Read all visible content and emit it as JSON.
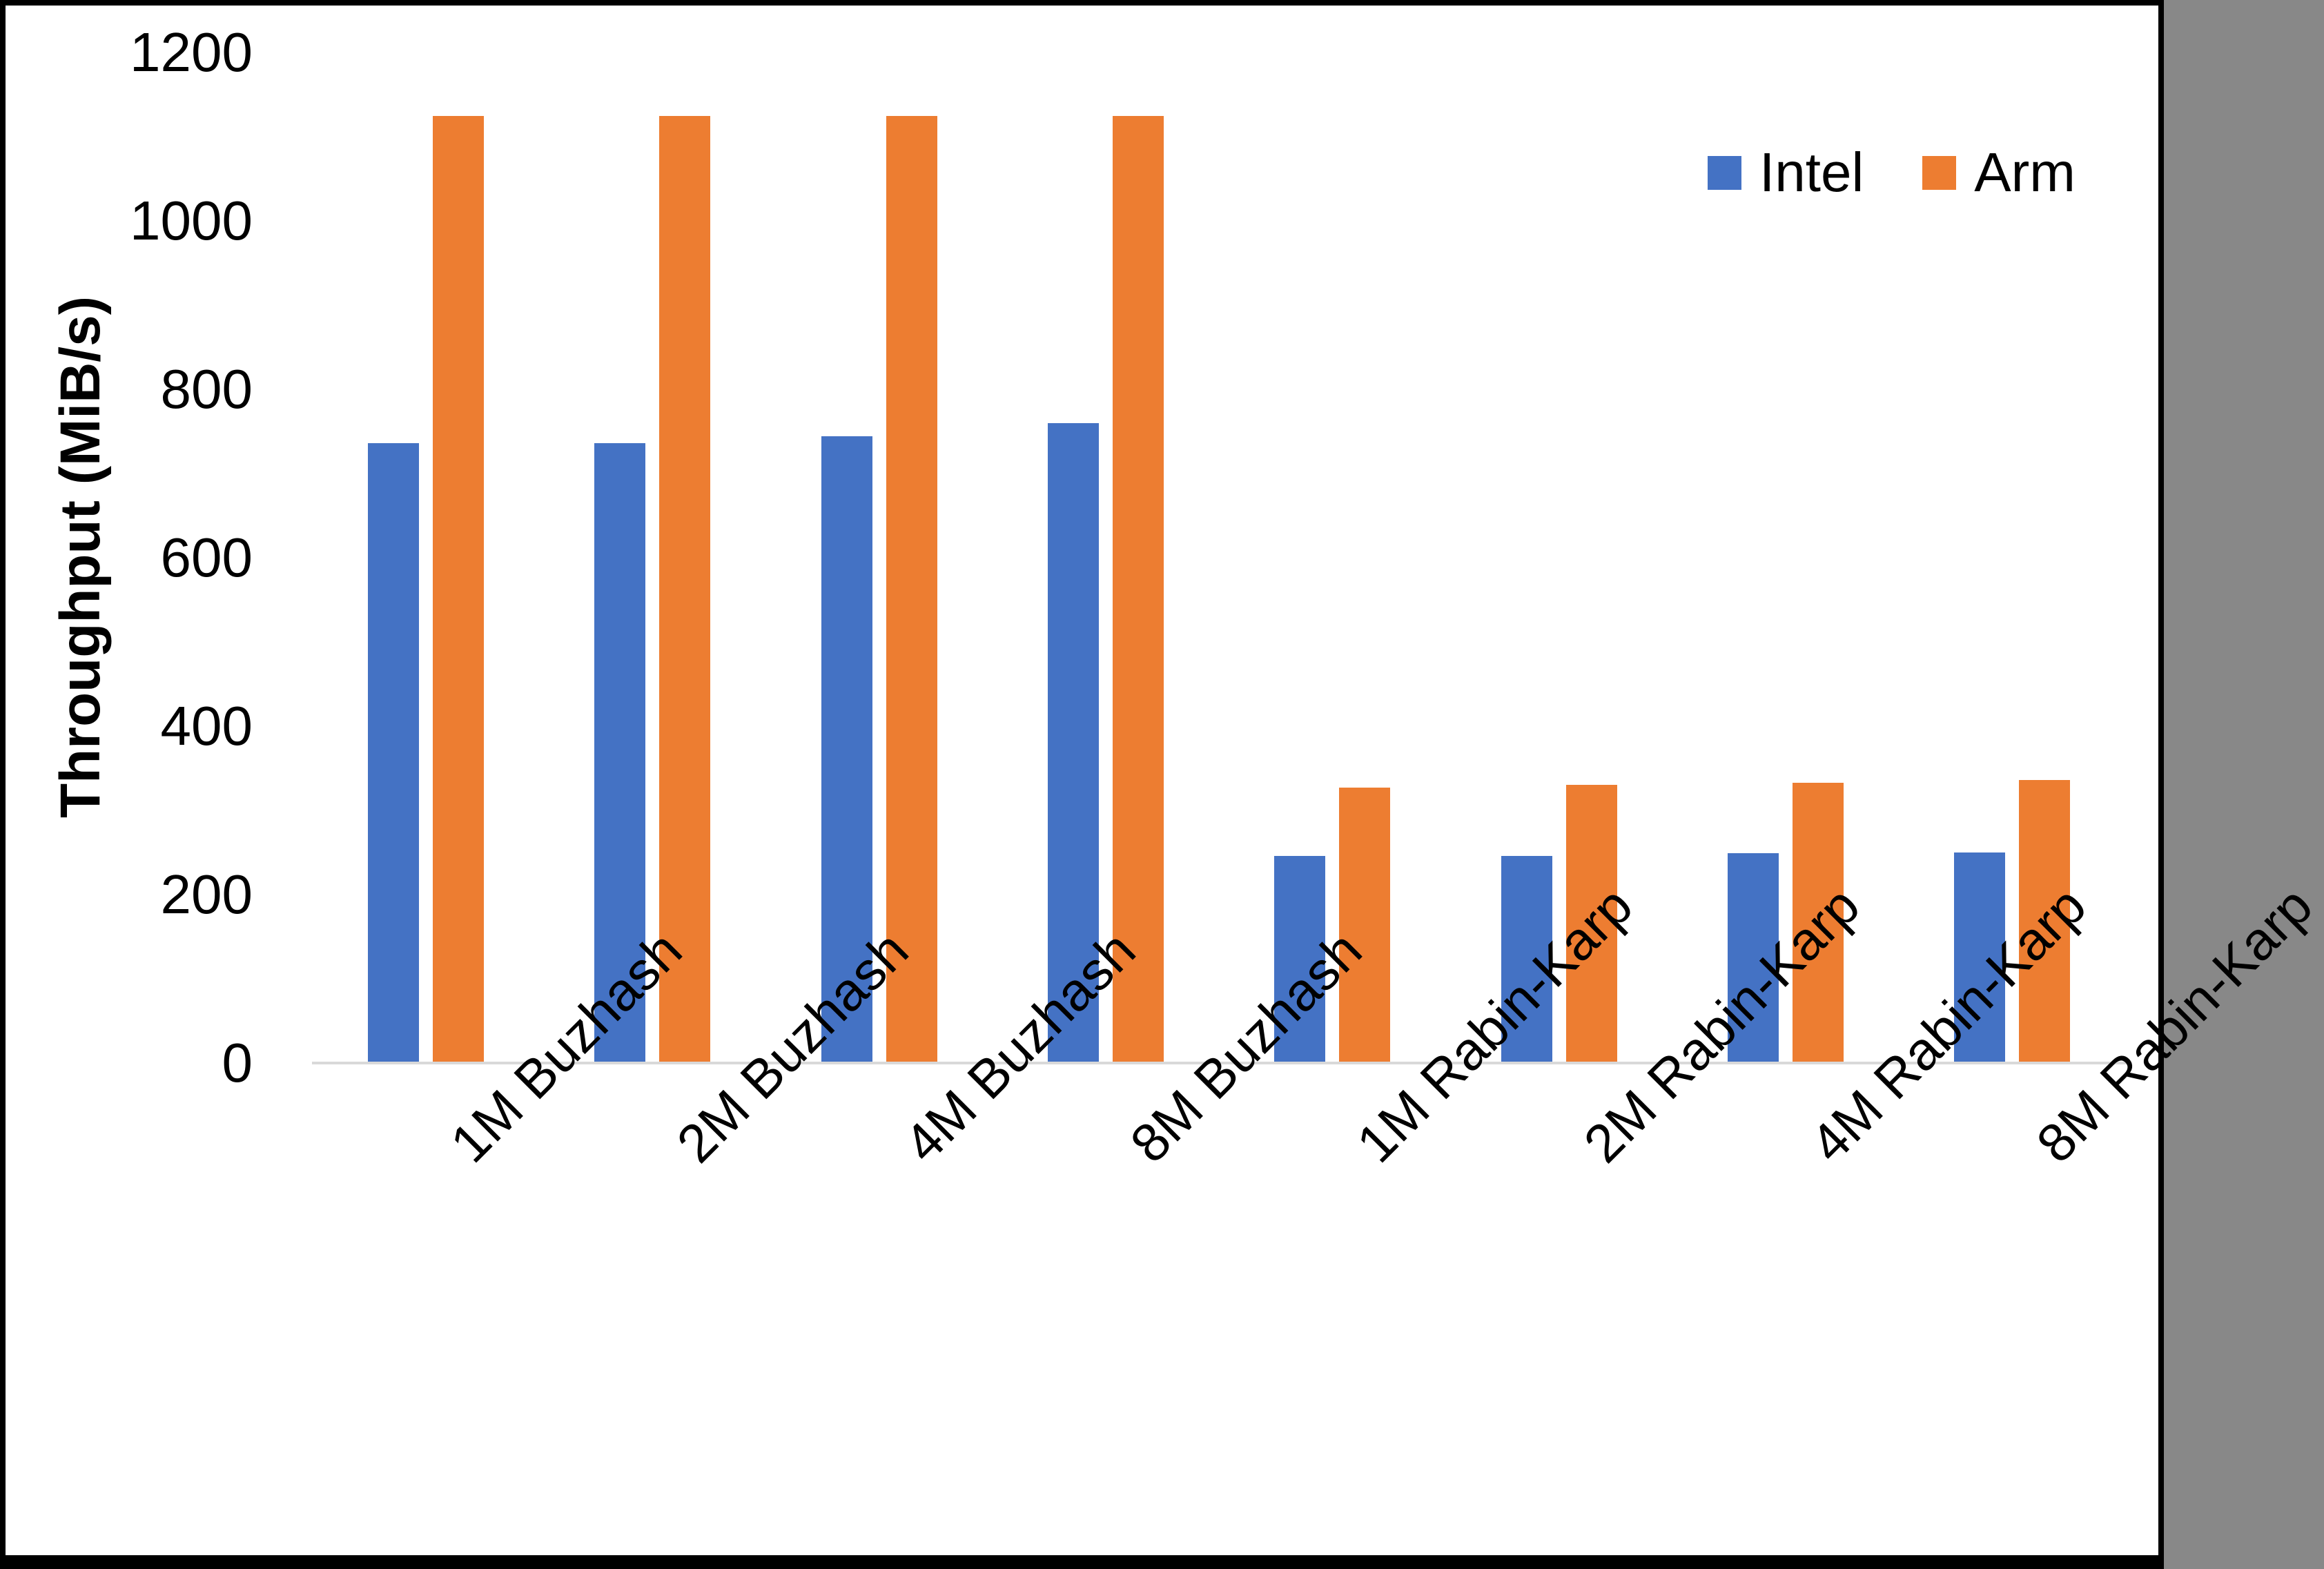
{
  "frame": {
    "background": "#FFFFFF",
    "border_color": "#000000"
  },
  "chart_data": {
    "type": "bar",
    "title": "",
    "xlabel": "",
    "ylabel": "Throughput (MiB/s)",
    "categories": [
      "1M Buzhash",
      "2M Buzhash",
      "4M Buzhash",
      "8M Buzhash",
      "1M Rabin-Karp",
      "2M Rabin-Karp",
      "4M Rabin-Karp",
      "8M Rabin-Karp"
    ],
    "series": [
      {
        "name": "Intel",
        "color": "#4472C4",
        "values": [
          736,
          736,
          744,
          760,
          246,
          246,
          249,
          250
        ]
      },
      {
        "name": "Arm",
        "color": "#ED7D31",
        "values": [
          1125,
          1125,
          1125,
          1125,
          327,
          330,
          333,
          336
        ]
      }
    ],
    "ylim": [
      0,
      1200
    ],
    "yticks": [
      0,
      200,
      400,
      600,
      800,
      1000,
      1200
    ],
    "grid": false,
    "legend_position": "top-right",
    "axis_line_color": "#D9D9D9",
    "text_color": "#000000"
  }
}
